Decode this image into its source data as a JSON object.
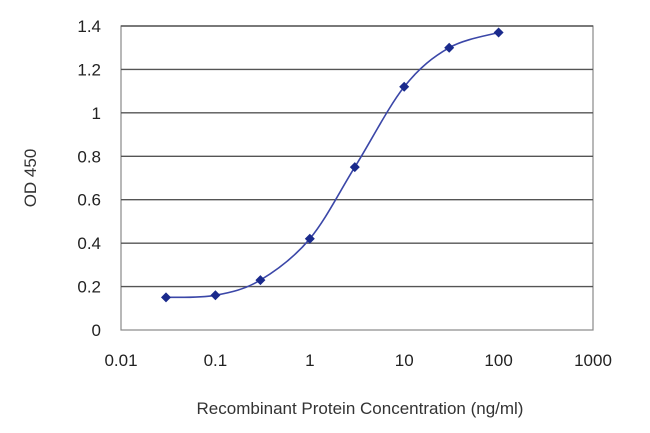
{
  "chart_data": {
    "type": "line",
    "title": "",
    "xlabel": "Recombinant Protein Concentration (ng/ml)",
    "ylabel": "OD 450",
    "x_scale": "log",
    "xlim": [
      0.01,
      1000
    ],
    "ylim": [
      0,
      1.4
    ],
    "grid": "horizontal",
    "legend": "none",
    "x_ticks": [
      {
        "value": 0.01,
        "label": "0.01"
      },
      {
        "value": 0.1,
        "label": "0.1"
      },
      {
        "value": 1,
        "label": "1"
      },
      {
        "value": 10,
        "label": "10"
      },
      {
        "value": 100,
        "label": "100"
      },
      {
        "value": 1000,
        "label": "1000"
      }
    ],
    "y_ticks": [
      {
        "value": 0,
        "label": "0"
      },
      {
        "value": 0.2,
        "label": "0.2"
      },
      {
        "value": 0.4,
        "label": "0.4"
      },
      {
        "value": 0.6,
        "label": "0.6"
      },
      {
        "value": 0.8,
        "label": "0.8"
      },
      {
        "value": 1.0,
        "label": "1"
      },
      {
        "value": 1.2,
        "label": "1.2"
      },
      {
        "value": 1.4,
        "label": "1.4"
      }
    ],
    "series": [
      {
        "x": [
          0.03,
          0.1,
          0.3,
          1,
          3,
          10,
          30,
          100
        ],
        "y": [
          0.15,
          0.16,
          0.23,
          0.42,
          0.75,
          1.12,
          1.3,
          1.37
        ]
      }
    ],
    "colors": {
      "line": "#3b47a8",
      "marker": "#1a2a8c",
      "grid": "#555555",
      "frame": "#888888"
    }
  }
}
